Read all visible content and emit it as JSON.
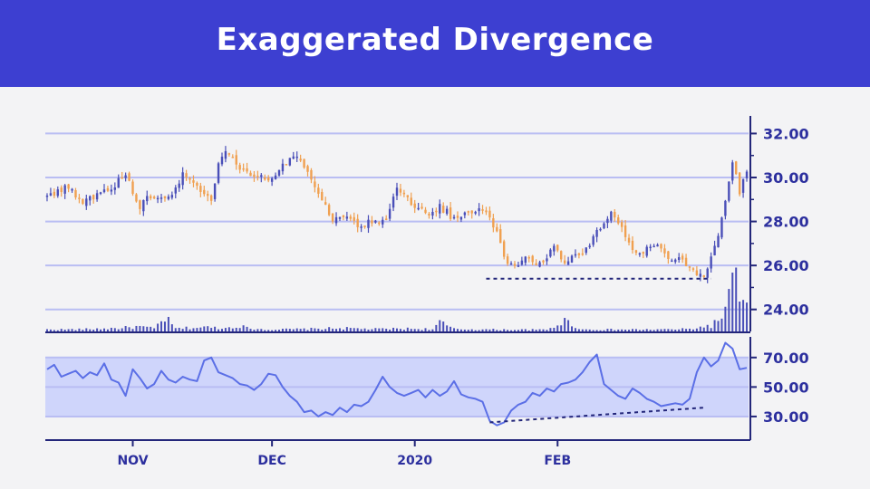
{
  "header": {
    "title": "Exaggerated Divergence"
  },
  "colors": {
    "header_bg": "#3d3fd1",
    "up_candle": "#4a4fb8",
    "down_candle": "#f0a050",
    "grid": "#b9bdf3",
    "axis": "#23267a",
    "rsi_line": "#5b6fe6",
    "rsi_band": "#cfd5fb",
    "volume": "#4a4fb8"
  },
  "chart_data": [
    {
      "type": "candlestick",
      "title": "Exaggerated Divergence",
      "ylim": [
        23.0,
        32.8
      ],
      "yticks": [
        "32.00",
        "30.00",
        "28.00",
        "26.00",
        "24.00"
      ],
      "ytick_values": [
        32,
        30,
        28,
        26,
        24
      ],
      "xticks": [
        "NOV",
        "DEC",
        "2020",
        "FEB"
      ],
      "xtick_index": [
        24,
        63,
        103,
        143
      ],
      "close_path": [
        [
          0,
          29.1
        ],
        [
          6,
          29.6
        ],
        [
          10,
          28.8
        ],
        [
          14,
          29.3
        ],
        [
          18,
          29.5
        ],
        [
          22,
          30.2
        ],
        [
          26,
          28.6
        ],
        [
          28,
          29.3
        ],
        [
          32,
          29.0
        ],
        [
          36,
          29.4
        ],
        [
          38,
          30.3
        ],
        [
          42,
          29.5
        ],
        [
          46,
          29.0
        ],
        [
          48,
          30.5
        ],
        [
          50,
          31.3
        ],
        [
          54,
          30.4
        ],
        [
          58,
          30.1
        ],
        [
          62,
          29.9
        ],
        [
          66,
          30.6
        ],
        [
          70,
          31.1
        ],
        [
          74,
          29.9
        ],
        [
          78,
          28.8
        ],
        [
          80,
          28.0
        ],
        [
          84,
          28.2
        ],
        [
          88,
          27.8
        ],
        [
          92,
          28.1
        ],
        [
          95,
          28.0
        ],
        [
          98,
          29.5
        ],
        [
          102,
          28.9
        ],
        [
          106,
          28.3
        ],
        [
          110,
          28.7
        ],
        [
          114,
          28.1
        ],
        [
          118,
          28.3
        ],
        [
          122,
          28.6
        ],
        [
          126,
          27.5
        ],
        [
          128,
          26.3
        ],
        [
          132,
          25.9
        ],
        [
          135,
          26.4
        ],
        [
          138,
          26.0
        ],
        [
          142,
          26.8
        ],
        [
          145,
          26.2
        ],
        [
          150,
          26.6
        ],
        [
          154,
          27.5
        ],
        [
          158,
          28.5
        ],
        [
          162,
          27.4
        ],
        [
          165,
          26.5
        ],
        [
          170,
          26.9
        ],
        [
          174,
          26.4
        ],
        [
          178,
          26.2
        ],
        [
          181,
          25.8
        ],
        [
          184,
          25.5
        ],
        [
          186,
          26.5
        ],
        [
          188,
          27.5
        ],
        [
          190,
          29.0
        ],
        [
          192,
          30.8
        ],
        [
          194,
          29.2
        ],
        [
          196,
          30.4
        ]
      ],
      "volume_path": [
        [
          0,
          0.08
        ],
        [
          10,
          0.09
        ],
        [
          20,
          0.14
        ],
        [
          26,
          0.2
        ],
        [
          30,
          0.12
        ],
        [
          33,
          0.58
        ],
        [
          36,
          0.12
        ],
        [
          44,
          0.18
        ],
        [
          50,
          0.14
        ],
        [
          54,
          0.26
        ],
        [
          56,
          0.14
        ],
        [
          62,
          0.08
        ],
        [
          72,
          0.1
        ],
        [
          82,
          0.14
        ],
        [
          92,
          0.1
        ],
        [
          100,
          0.12
        ],
        [
          108,
          0.1
        ],
        [
          110,
          0.38
        ],
        [
          114,
          0.1
        ],
        [
          124,
          0.08
        ],
        [
          140,
          0.07
        ],
        [
          145,
          0.45
        ],
        [
          150,
          0.08
        ],
        [
          170,
          0.08
        ],
        [
          180,
          0.1
        ],
        [
          186,
          0.25
        ],
        [
          188,
          0.45
        ],
        [
          190,
          0.9
        ],
        [
          192,
          2.0
        ],
        [
          194,
          1.8
        ],
        [
          196,
          1.0
        ]
      ],
      "support_line": {
        "from_index": 123,
        "to_index": 186,
        "value": 25.4
      }
    },
    {
      "type": "line",
      "title": "RSI",
      "ylim": [
        14,
        84
      ],
      "yticks": [
        "70.00",
        "50.00",
        "30.00"
      ],
      "ytick_values": [
        70,
        50,
        30
      ],
      "band": [
        30,
        70
      ],
      "x": [
        0,
        2,
        4,
        6,
        8,
        10,
        12,
        14,
        16,
        18,
        20,
        22,
        24,
        26,
        28,
        30,
        32,
        34,
        36,
        38,
        40,
        42,
        44,
        46,
        48,
        50,
        52,
        54,
        56,
        58,
        60,
        62,
        64,
        66,
        68,
        70,
        72,
        74,
        76,
        78,
        80,
        82,
        84,
        86,
        88,
        90,
        92,
        94,
        96,
        98,
        100,
        102,
        104,
        106,
        108,
        110,
        112,
        114,
        116,
        118,
        120,
        122,
        124,
        126,
        128,
        130,
        132,
        134,
        136,
        138,
        140,
        142,
        144,
        146,
        148,
        150,
        152,
        154,
        156,
        158,
        160,
        162,
        164,
        166,
        168,
        170,
        172,
        174,
        176,
        178,
        180,
        182,
        184,
        186,
        188,
        190,
        192,
        194,
        196
      ],
      "values": [
        62,
        65,
        57,
        59,
        61,
        56,
        60,
        58,
        66,
        55,
        53,
        44,
        62,
        56,
        49,
        52,
        61,
        55,
        53,
        57,
        55,
        54,
        68,
        70,
        60,
        58,
        56,
        52,
        51,
        48,
        52,
        59,
        58,
        50,
        44,
        40,
        33,
        34,
        30,
        33,
        31,
        36,
        33,
        38,
        37,
        40,
        48,
        57,
        50,
        46,
        44,
        46,
        48,
        43,
        48,
        44,
        47,
        54,
        45,
        43,
        42,
        40,
        27,
        24,
        26,
        34,
        38,
        40,
        46,
        44,
        49,
        47,
        52,
        53,
        55,
        60,
        67,
        72,
        52,
        48,
        44,
        42,
        49,
        46,
        42,
        40,
        37,
        38,
        39,
        38,
        42,
        60,
        70,
        64,
        68,
        80,
        76,
        62,
        63
      ],
      "divergence_line": {
        "from_index": 124,
        "from_value": 26,
        "to_index": 184,
        "to_value": 36
      }
    }
  ]
}
